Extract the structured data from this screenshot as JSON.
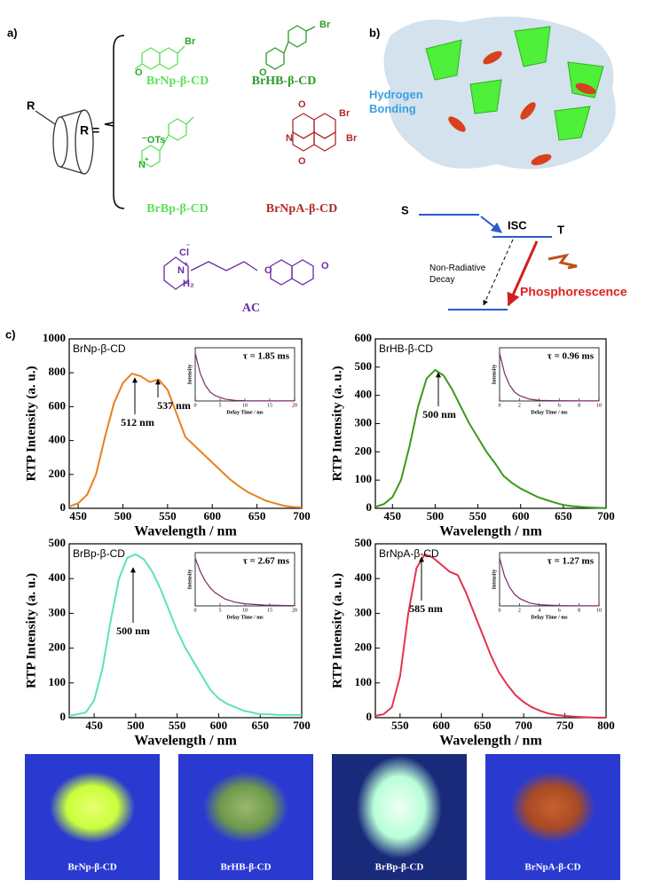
{
  "panel_a": {
    "label": "a)",
    "r_group": "R",
    "r_equals": "R =",
    "compounds": [
      {
        "name": "BrNp-β-CD",
        "color": "#5ee05a"
      },
      {
        "name": "BrHB-β-CD",
        "color": "#2f9a2a"
      },
      {
        "name": "BrBp-β-CD",
        "color": "#5ee05a"
      },
      {
        "name": "BrNpA-β-CD",
        "color": "#b02a2a"
      },
      {
        "name": "AC",
        "color": "#6a2aa8"
      }
    ],
    "atom_labels": [
      "Br",
      "O",
      "Br",
      "O",
      "⁻OTs",
      "Br",
      "N",
      "+",
      "O",
      "N",
      "O",
      "Br",
      "Cl",
      "⁻",
      "N",
      "+",
      "H₂",
      "O",
      "O"
    ]
  },
  "panel_b": {
    "label": "b)",
    "hydrogen_bonding": "Hydrogen Bonding",
    "singlet": "S",
    "isc": "ISC",
    "triplet": "T",
    "non_radiative": "Non-Radiative Decay",
    "phosphorescence": "Phosphorescence"
  },
  "panel_c_label": "c)",
  "chart_data": [
    {
      "type": "line",
      "x_label": "Wavelength / nm",
      "y_label": "RTP Intensity (a. u.)",
      "xlim": [
        440,
        700
      ],
      "xticks": [
        450,
        500,
        550,
        600,
        650,
        700
      ],
      "ylim": [
        0,
        1000
      ],
      "yticks": [
        0,
        200,
        400,
        600,
        800,
        1000
      ],
      "x": [
        440,
        450,
        460,
        470,
        480,
        490,
        500,
        510,
        520,
        530,
        540,
        550,
        560,
        570,
        580,
        590,
        600,
        610,
        620,
        630,
        640,
        650,
        660,
        670,
        680,
        690,
        700
      ],
      "series": [
        {
          "name": "BrNp-β-CD",
          "color": "#e8801e",
          "values": [
            10,
            30,
            80,
            200,
            420,
            620,
            740,
            795,
            780,
            745,
            760,
            700,
            560,
            420,
            370,
            320,
            270,
            220,
            170,
            130,
            95,
            70,
            45,
            30,
            15,
            8,
            5
          ]
        }
      ],
      "annotations": [
        "512 nm",
        "537 nm"
      ],
      "inset": {
        "annotation": "τ = 1.85 ms",
        "x_label": "Delay Time / ms",
        "y_label": "Intensity",
        "xlim": [
          0,
          20
        ],
        "xticks": [
          0,
          5,
          10,
          15,
          20
        ],
        "ylim": [
          0,
          1000
        ],
        "x": [
          0,
          1,
          2,
          3,
          4,
          6,
          8,
          10,
          14,
          20
        ],
        "values": [
          900,
          520,
          300,
          170,
          100,
          35,
          12,
          5,
          2,
          1
        ]
      }
    },
    {
      "type": "line",
      "x_label": "Wavelength / nm",
      "y_label": "RTP Intensity (a. u.)",
      "xlim": [
        430,
        700
      ],
      "xticks": [
        450,
        500,
        550,
        600,
        650,
        700
      ],
      "ylim": [
        0,
        600
      ],
      "yticks": [
        0,
        100,
        200,
        300,
        400,
        500,
        600
      ],
      "x": [
        430,
        440,
        450,
        460,
        470,
        480,
        490,
        500,
        510,
        520,
        530,
        540,
        550,
        560,
        570,
        580,
        590,
        600,
        610,
        620,
        630,
        640,
        650,
        660,
        670,
        680,
        690,
        700
      ],
      "series": [
        {
          "name": "BrHB-β-CD",
          "color": "#3a9a1a",
          "values": [
            5,
            15,
            40,
            100,
            220,
            360,
            460,
            490,
            470,
            420,
            360,
            300,
            250,
            200,
            160,
            115,
            90,
            70,
            55,
            40,
            30,
            20,
            12,
            8,
            5,
            3,
            2,
            1
          ]
        }
      ],
      "annotations": [
        "500 nm"
      ],
      "inset": {
        "annotation": "τ = 0.96 ms",
        "x_label": "Delay Time / ms",
        "y_label": "Intensity",
        "xlim": [
          0,
          10
        ],
        "xticks": [
          0,
          2,
          4,
          6,
          8,
          10
        ],
        "ylim": [
          0,
          1000
        ],
        "x": [
          0,
          0.5,
          1,
          1.5,
          2,
          3,
          4,
          6,
          8,
          10
        ],
        "values": [
          900,
          520,
          300,
          170,
          100,
          35,
          12,
          5,
          2,
          1
        ]
      }
    },
    {
      "type": "line",
      "x_label": "Wavelength / nm",
      "y_label": "RTP Intensity (a. u.)",
      "xlim": [
        420,
        700
      ],
      "xticks": [
        450,
        500,
        550,
        600,
        650,
        700
      ],
      "ylim": [
        0,
        500
      ],
      "yticks": [
        0,
        100,
        200,
        300,
        400,
        500
      ],
      "x": [
        420,
        430,
        440,
        450,
        460,
        470,
        480,
        490,
        500,
        510,
        520,
        530,
        540,
        550,
        560,
        570,
        580,
        590,
        600,
        610,
        620,
        630,
        640,
        650,
        660,
        670,
        680,
        690,
        700
      ],
      "series": [
        {
          "name": "BrBp-β-CD",
          "color": "#5fe0c0",
          "values": [
            5,
            10,
            15,
            50,
            140,
            280,
            400,
            460,
            470,
            455,
            420,
            370,
            310,
            250,
            200,
            160,
            120,
            80,
            55,
            40,
            30,
            20,
            15,
            10,
            10,
            8,
            8,
            8,
            8
          ]
        }
      ],
      "annotations": [
        "500 nm"
      ],
      "inset": {
        "annotation": "τ = 2.67 ms",
        "x_label": "Delay Time / ms",
        "y_label": "Intensity",
        "xlim": [
          0,
          20
        ],
        "xticks": [
          0,
          5,
          10,
          15,
          20
        ],
        "ylim": [
          0,
          1000
        ],
        "x": [
          0,
          1,
          2,
          3,
          4,
          6,
          8,
          10,
          14,
          20
        ],
        "values": [
          900,
          650,
          470,
          340,
          250,
          130,
          70,
          40,
          15,
          5
        ]
      }
    },
    {
      "type": "line",
      "x_label": "Wavelength / nm",
      "y_label": "RTP Intensity (a. u.)",
      "xlim": [
        520,
        800
      ],
      "xticks": [
        550,
        600,
        650,
        700,
        750,
        800
      ],
      "ylim": [
        0,
        500
      ],
      "yticks": [
        0,
        100,
        200,
        300,
        400,
        500
      ],
      "x": [
        520,
        530,
        540,
        550,
        560,
        570,
        580,
        590,
        600,
        610,
        620,
        630,
        640,
        650,
        660,
        670,
        680,
        690,
        700,
        710,
        720,
        730,
        740,
        750,
        760,
        770,
        780,
        790,
        800
      ],
      "series": [
        {
          "name": "BrNpA-β-CD",
          "color": "#e0354f",
          "values": [
            5,
            10,
            30,
            120,
            300,
            430,
            470,
            460,
            440,
            420,
            410,
            360,
            300,
            240,
            180,
            130,
            95,
            65,
            45,
            30,
            20,
            12,
            8,
            5,
            3,
            2,
            1,
            0,
            0
          ]
        }
      ],
      "annotations": [
        "585 nm"
      ],
      "inset": {
        "annotation": "τ = 1.27 ms",
        "x_label": "Delay Time / ms",
        "y_label": "Intensity",
        "xlim": [
          0,
          10
        ],
        "xticks": [
          0,
          2,
          4,
          6,
          8,
          10
        ],
        "ylim": [
          0,
          1000
        ],
        "x": [
          0,
          0.5,
          1,
          1.5,
          2,
          3,
          4,
          6,
          8,
          10
        ],
        "values": [
          900,
          560,
          350,
          220,
          140,
          55,
          22,
          6,
          2,
          1
        ]
      }
    }
  ],
  "photos": [
    {
      "label": "BrNp-β-CD",
      "glow": "#c8ff3a"
    },
    {
      "label": "BrHB-β-CD",
      "glow": "#6f9a4a"
    },
    {
      "label": "BrBp-β-CD",
      "glow": "#c8ffe0"
    },
    {
      "label": "BrNpA-β-CD",
      "glow": "#b0502a"
    }
  ]
}
